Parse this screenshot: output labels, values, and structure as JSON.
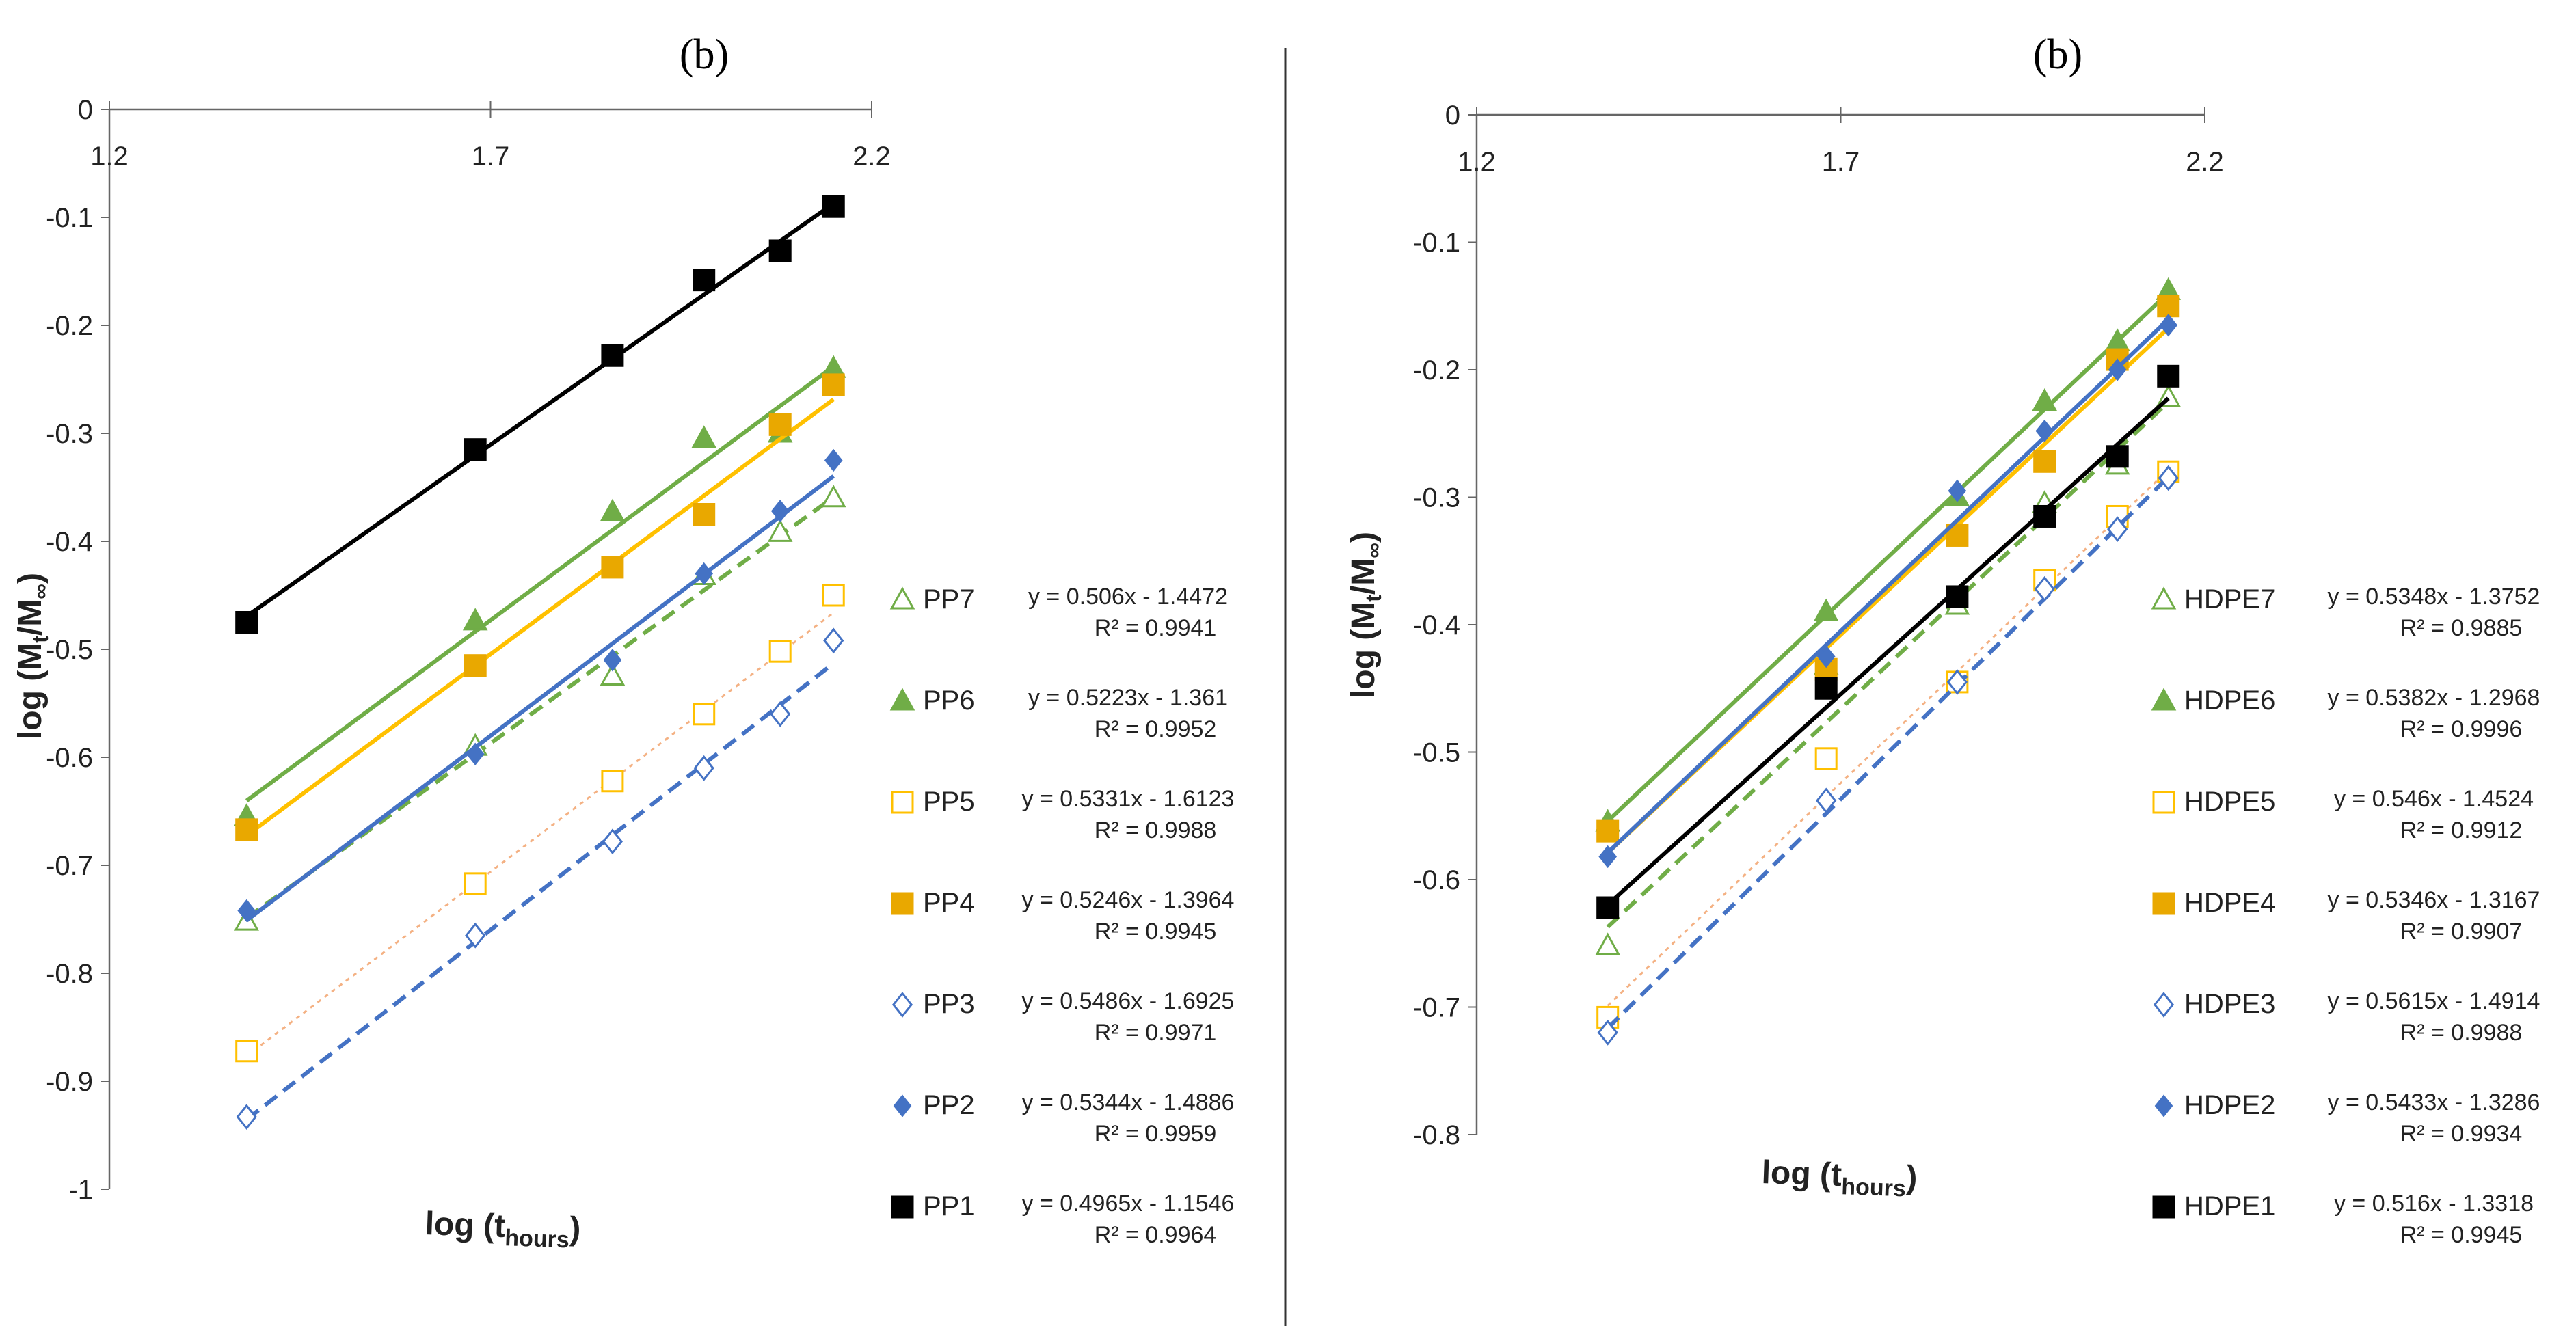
{
  "chart_data": [
    {
      "type": "scatter",
      "panel_label": "(b)",
      "xlabel": "log (t",
      "xlabel_sub": "hours",
      "xlabel_close": ")",
      "ylabel": "log (M",
      "ylabel_sub": "t",
      "ylabel_mid": "/M",
      "ylabel_sub2": "∞",
      "ylabel_close": ")",
      "xlim": [
        1.2,
        2.2
      ],
      "ylim": [
        -1,
        0
      ],
      "xticks": [
        "1.2",
        "1.7",
        "2.2"
      ],
      "yticks": [
        "0",
        "-0.1",
        "-0.2",
        "-0.3",
        "-0.4",
        "-0.5",
        "-0.6",
        "-0.7",
        "-0.8",
        "-0.9",
        "-1"
      ],
      "x_axis_at_top": true,
      "legend_position": "right",
      "x": [
        1.38,
        1.68,
        1.86,
        1.98,
        2.08,
        2.15
      ],
      "series": [
        {
          "name": "PP7",
          "marker": "triangle-open",
          "color": "#70ad47",
          "line": "dashed",
          "values": [
            -0.752,
            -0.59,
            -0.525,
            -0.432,
            -0.392,
            -0.36
          ],
          "equation": "y = 0.506x - 1.4472",
          "r2": "R² = 0.9941",
          "fit": {
            "slope": 0.506,
            "intercept": -1.4472
          }
        },
        {
          "name": "PP6",
          "marker": "triangle-filled",
          "color": "#70ad47",
          "line": "solid",
          "values": [
            -0.655,
            -0.474,
            -0.373,
            -0.305,
            -0.3,
            -0.24
          ],
          "equation": "y = 0.5223x - 1.361",
          "r2": "R² = 0.9952",
          "fit": {
            "slope": 0.5223,
            "intercept": -1.361
          }
        },
        {
          "name": "PP5",
          "marker": "square-open",
          "color": "#ffc000",
          "line": "dotted",
          "line_color": "#f4b183",
          "values": [
            -0.872,
            -0.717,
            -0.622,
            -0.56,
            -0.502,
            -0.45
          ],
          "equation": "y = 0.5331x - 1.6123",
          "r2": "R² = 0.9988",
          "fit": {
            "slope": 0.5331,
            "intercept": -1.6123
          }
        },
        {
          "name": "PP4",
          "marker": "square-filled",
          "color": "#e9a800",
          "line": "solid",
          "line_color": "#ffc000",
          "values": [
            -0.667,
            -0.515,
            -0.424,
            -0.375,
            -0.292,
            -0.255
          ],
          "equation": "y = 0.5246x - 1.3964",
          "r2": "R² = 0.9945",
          "fit": {
            "slope": 0.5246,
            "intercept": -1.3964
          }
        },
        {
          "name": "PP3",
          "marker": "diamond-open",
          "color": "#4472c4",
          "line": "dashed",
          "values": [
            -0.933,
            -0.765,
            -0.678,
            -0.61,
            -0.56,
            -0.492
          ],
          "equation": "y = 0.5486x - 1.6925",
          "r2": "R² = 0.9971",
          "fit": {
            "slope": 0.5486,
            "intercept": -1.6925
          }
        },
        {
          "name": "PP2",
          "marker": "diamond-filled",
          "color": "#4472c4",
          "line": "solid",
          "values": [
            -0.742,
            -0.597,
            -0.51,
            -0.43,
            -0.372,
            -0.325
          ],
          "equation": "y = 0.5344x - 1.4886",
          "r2": "R² = 0.9959",
          "fit": {
            "slope": 0.5344,
            "intercept": -1.4886
          }
        },
        {
          "name": "PP1",
          "marker": "square-filled",
          "color": "#000000",
          "line": "solid",
          "values": [
            -0.475,
            -0.315,
            -0.228,
            -0.158,
            -0.131,
            -0.09
          ],
          "equation": "y = 0.4965x - 1.1546",
          "r2": "R² = 0.9964",
          "fit": {
            "slope": 0.4965,
            "intercept": -1.1546
          }
        }
      ]
    },
    {
      "type": "scatter",
      "panel_label": "(b)",
      "xlabel": "log (t",
      "xlabel_sub": "hours",
      "xlabel_close": ")",
      "ylabel": "log (M",
      "ylabel_sub": "t",
      "ylabel_mid": "/M",
      "ylabel_sub2": "∞",
      "ylabel_close": ")",
      "xlim": [
        1.2,
        2.2
      ],
      "ylim": [
        -0.8,
        0
      ],
      "xticks": [
        "1.2",
        "1.7",
        "2.2"
      ],
      "yticks": [
        "0",
        "-0.1",
        "-0.2",
        "-0.3",
        "-0.4",
        "-0.5",
        "-0.6",
        "-0.7",
        "-0.8"
      ],
      "x_axis_at_top": true,
      "legend_position": "right",
      "x": [
        1.38,
        1.68,
        1.86,
        1.98,
        2.08,
        2.15
      ],
      "series": [
        {
          "name": "HDPE7",
          "marker": "triangle-open",
          "color": "#70ad47",
          "line": "dashed",
          "values": [
            -0.652,
            -0.432,
            -0.385,
            -0.305,
            -0.275,
            -0.222
          ],
          "equation": "y = 0.5348x - 1.3752",
          "r2": "R² = 0.9885",
          "fit": {
            "slope": 0.5348,
            "intercept": -1.3752
          }
        },
        {
          "name": "HDPE6",
          "marker": "triangle-filled",
          "color": "#70ad47",
          "line": "solid",
          "values": [
            -0.555,
            -0.39,
            -0.3,
            -0.225,
            -0.178,
            -0.138
          ],
          "equation": "y = 0.5382x - 1.2968",
          "r2": "R² = 0.9996",
          "fit": {
            "slope": 0.5382,
            "intercept": -1.2968
          }
        },
        {
          "name": "HDPE5",
          "marker": "square-open",
          "color": "#ffc000",
          "line": "dotted",
          "line_color": "#f4b183",
          "values": [
            -0.708,
            -0.505,
            -0.445,
            -0.365,
            -0.315,
            -0.28
          ],
          "equation": "y = 0.546x - 1.4524",
          "r2": "R² = 0.9912",
          "fit": {
            "slope": 0.546,
            "intercept": -1.4524
          }
        },
        {
          "name": "HDPE4",
          "marker": "square-filled",
          "color": "#e9a800",
          "line": "solid",
          "line_color": "#ffc000",
          "values": [
            -0.562,
            -0.435,
            -0.33,
            -0.272,
            -0.192,
            -0.15
          ],
          "equation": "y = 0.5346x - 1.3167",
          "r2": "R² = 0.9907",
          "fit": {
            "slope": 0.5346,
            "intercept": -1.3167
          }
        },
        {
          "name": "HDPE3",
          "marker": "diamond-open",
          "color": "#4472c4",
          "line": "dashed",
          "values": [
            -0.72,
            -0.538,
            -0.445,
            -0.372,
            -0.325,
            -0.285
          ],
          "equation": "y = 0.5615x - 1.4914",
          "r2": "R² = 0.9988",
          "fit": {
            "slope": 0.5615,
            "intercept": -1.4914
          }
        },
        {
          "name": "HDPE2",
          "marker": "diamond-filled",
          "color": "#4472c4",
          "line": "solid",
          "values": [
            -0.582,
            -0.425,
            -0.295,
            -0.248,
            -0.2,
            -0.165
          ],
          "equation": "y = 0.5433x - 1.3286",
          "r2": "R² = 0.9934",
          "fit": {
            "slope": 0.5433,
            "intercept": -1.3286
          }
        },
        {
          "name": "HDPE1",
          "marker": "square-filled",
          "color": "#000000",
          "line": "solid",
          "values": [
            -0.622,
            -0.45,
            -0.378,
            -0.315,
            -0.268,
            -0.205
          ],
          "equation": "y = 0.516x - 1.3318",
          "r2": "R² = 0.9945",
          "fit": {
            "slope": 0.516,
            "intercept": -1.3318
          }
        }
      ]
    }
  ]
}
